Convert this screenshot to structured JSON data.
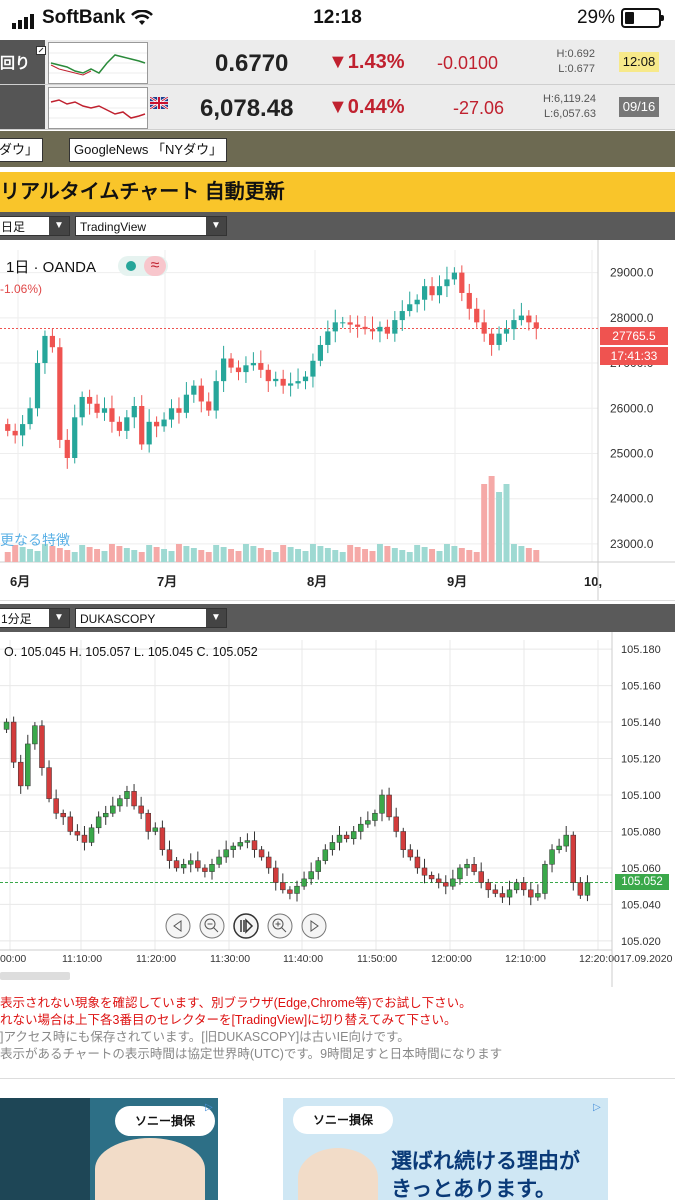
{
  "status": {
    "carrier": "SoftBank",
    "time": "12:18",
    "battery": "29%"
  },
  "quotes": [
    {
      "name": "回り",
      "price": "0.6770",
      "pct": "▼1.43%",
      "diff": "-0.0100",
      "high": "H:0.692",
      "low": "L:0.677",
      "time": "12:08",
      "time_bg": "#f7e98a",
      "time_color": "#111"
    },
    {
      "name": "",
      "flag": "uk-flag-icon",
      "price": "6,078.48",
      "pct": "▼0.44%",
      "diff": "-27.06",
      "high": "H:6,119.24",
      "low": "L:6,057.63",
      "time": "09/16",
      "time_bg": "#777777",
      "time_color": "#ffffff"
    }
  ],
  "news": {
    "btn1": "ダウ」",
    "btn2": "GoogleNews 「NYダウ」"
  },
  "realtime_title": "リアルタイムチャート 自動更新",
  "chart1": {
    "timeframe": "日足",
    "provider": "TradingView",
    "legend": "1日 · OANDA",
    "change": "-1.06%)",
    "watermark": "更なる特徴",
    "last_price": "27765.5",
    "countdown": "17:41:33",
    "chart_data": {
      "type": "candlestick",
      "x_labels": [
        "6月",
        "7月",
        "8月",
        "9月",
        "10,"
      ],
      "y_ticks": [
        "29000.0",
        "28000.0",
        "27000.0",
        "26000.0",
        "25000.0",
        "24000.0",
        "23000.0"
      ],
      "ylim": [
        22600,
        29500
      ],
      "closes": [
        25500,
        25400,
        25650,
        26000,
        27000,
        27600,
        27350,
        25300,
        24900,
        25800,
        26250,
        26100,
        25900,
        26000,
        25700,
        25500,
        25800,
        26050,
        25200,
        25700,
        25600,
        25750,
        26000,
        25900,
        26300,
        26500,
        26150,
        25950,
        26600,
        27100,
        26900,
        26800,
        26950,
        27000,
        26850,
        26600,
        26650,
        26500,
        26550,
        26600,
        26700,
        27050,
        27400,
        27700,
        27900,
        27900,
        27850,
        27800,
        27750,
        27700,
        27800,
        27650,
        27950,
        28150,
        28300,
        28400,
        28700,
        28500,
        28700,
        28850,
        29000,
        28550,
        28200,
        27900,
        27650,
        27400,
        27650,
        27750,
        27950,
        28050,
        27900,
        27765
      ]
    }
  },
  "chart2": {
    "timeframe": "1分足",
    "provider": "DUKASCOPY",
    "ohlc": "O. 105.045 H. 105.057 L. 105.045 C. 105.052",
    "last_price": "105.052",
    "chart_data": {
      "type": "candlestick",
      "x_labels": [
        "00:00",
        "11:10:00",
        "11:20:00",
        "11:30:00",
        "11:40:00",
        "11:50:00",
        "12:00:00",
        "12:10:00",
        "12:20:0017.09.2020"
      ],
      "y_ticks": [
        "105.180",
        "105.160",
        "105.140",
        "105.120",
        "105.100",
        "105.080",
        "105.060",
        "105.040",
        "105.020"
      ],
      "ylim": [
        105.015,
        105.185
      ],
      "closes": [
        105.14,
        105.118,
        105.105,
        105.128,
        105.138,
        105.115,
        105.098,
        105.09,
        105.088,
        105.08,
        105.078,
        105.074,
        105.082,
        105.088,
        105.09,
        105.094,
        105.098,
        105.102,
        105.094,
        105.09,
        105.08,
        105.082,
        105.07,
        105.064,
        105.06,
        105.062,
        105.064,
        105.06,
        105.058,
        105.062,
        105.066,
        105.07,
        105.072,
        105.074,
        105.075,
        105.07,
        105.066,
        105.06,
        105.052,
        105.048,
        105.046,
        105.05,
        105.054,
        105.058,
        105.064,
        105.07,
        105.074,
        105.078,
        105.076,
        105.08,
        105.084,
        105.086,
        105.09,
        105.1,
        105.088,
        105.08,
        105.07,
        105.066,
        105.06,
        105.056,
        105.054,
        105.052,
        105.05,
        105.054,
        105.06,
        105.062,
        105.058,
        105.052,
        105.048,
        105.046,
        105.044,
        105.048,
        105.052,
        105.048,
        105.044,
        105.046,
        105.062,
        105.07,
        105.072,
        105.078,
        105.052,
        105.045,
        105.052
      ]
    },
    "nav_icons": [
      "prev-icon",
      "zoom-out-icon",
      "pause-icon",
      "zoom-in-icon",
      "next-icon"
    ]
  },
  "notices": [
    "表示されない現象を確認しています、別ブラウザ(Edge,Chrome等)でお試し下さい。",
    "れない場合は上下各3番目のセレクターを[TradingView]に切り替えてみて下さい。",
    "]アクセス時にも保存されています。[旧DUKASCOPY]は古いIE向けです。",
    "表示があるチャートの表示時間は協定世界時(UTC)です。9時間足すと日本時間になります"
  ],
  "ads": {
    "brand": "ソニー損保",
    "headline1": "選ばれ続ける理由が",
    "headline2": "きっとあります。"
  }
}
